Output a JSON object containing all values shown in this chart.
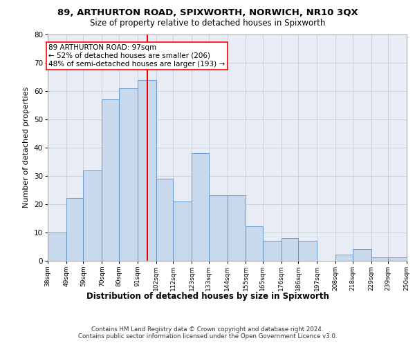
{
  "title1": "89, ARTHURTON ROAD, SPIXWORTH, NORWICH, NR10 3QX",
  "title2": "Size of property relative to detached houses in Spixworth",
  "xlabel": "Distribution of detached houses by size in Spixworth",
  "ylabel": "Number of detached properties",
  "bin_edges": [
    38,
    49,
    59,
    70,
    80,
    91,
    102,
    112,
    123,
    133,
    144,
    155,
    165,
    176,
    186,
    197,
    208,
    218,
    229,
    239,
    250
  ],
  "bar_heights": [
    10,
    22,
    32,
    57,
    61,
    64,
    29,
    21,
    38,
    23,
    23,
    12,
    7,
    8,
    7,
    0,
    2,
    4,
    1,
    1
  ],
  "tick_labels": [
    "38sqm",
    "49sqm",
    "59sqm",
    "70sqm",
    "80sqm",
    "91sqm",
    "102sqm",
    "112sqm",
    "123sqm",
    "133sqm",
    "144sqm",
    "155sqm",
    "165sqm",
    "176sqm",
    "186sqm",
    "197sqm",
    "208sqm",
    "218sqm",
    "229sqm",
    "239sqm",
    "250sqm"
  ],
  "bar_color": "#c9d9ed",
  "bar_edge_color": "#5b8fc5",
  "vline_x": 97,
  "vline_color": "red",
  "annotation_text": "89 ARTHURTON ROAD: 97sqm\n← 52% of detached houses are smaller (206)\n48% of semi-detached houses are larger (193) →",
  "annotation_box_color": "white",
  "annotation_box_edge": "red",
  "ylim": [
    0,
    80
  ],
  "yticks": [
    0,
    10,
    20,
    30,
    40,
    50,
    60,
    70,
    80
  ],
  "grid_color": "#c8d0dc",
  "bg_color": "#e8edf5",
  "footer_text": "Contains HM Land Registry data © Crown copyright and database right 2024.\nContains public sector information licensed under the Open Government Licence v3.0.",
  "title1_fontsize": 9.5,
  "title2_fontsize": 8.5,
  "xlabel_fontsize": 8.5,
  "ylabel_fontsize": 8,
  "annotation_fontsize": 7.5,
  "tick_fontsize": 6.5,
  "ytick_fontsize": 7.5
}
